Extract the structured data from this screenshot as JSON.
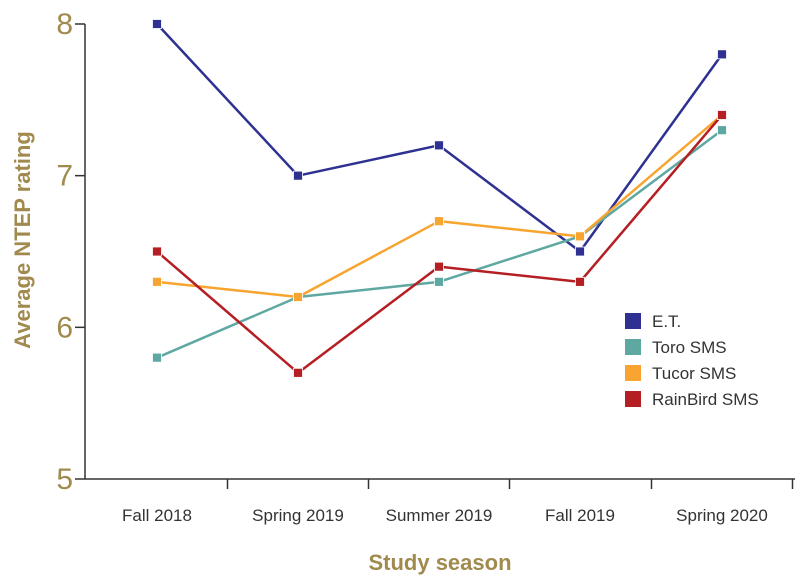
{
  "chart_data": {
    "type": "line",
    "categories": [
      "Fall 2018",
      "Spring 2019",
      "Summer 2019",
      "Fall 2019",
      "Spring 2020"
    ],
    "series": [
      {
        "name": "E.T.",
        "color": "#2e3191",
        "values": [
          8.0,
          7.0,
          7.2,
          6.5,
          7.8
        ]
      },
      {
        "name": "Toro SMS",
        "color": "#5fa8a2",
        "values": [
          5.8,
          6.2,
          6.3,
          6.6,
          7.3
        ]
      },
      {
        "name": "Tucor SMS",
        "color": "#f7a530",
        "values": [
          6.3,
          6.2,
          6.7,
          6.6,
          7.4
        ]
      },
      {
        "name": "RainBird SMS",
        "color": "#b51f24",
        "values": [
          6.5,
          5.7,
          6.4,
          6.3,
          7.4
        ]
      }
    ],
    "xlabel": "Study season",
    "ylabel": "Average NTEP rating",
    "ylim": [
      5,
      8
    ],
    "yticks": [
      "5",
      "6",
      "7",
      "8"
    ],
    "grid": false,
    "legend_position": "right",
    "text_color": "#a08a4e"
  }
}
